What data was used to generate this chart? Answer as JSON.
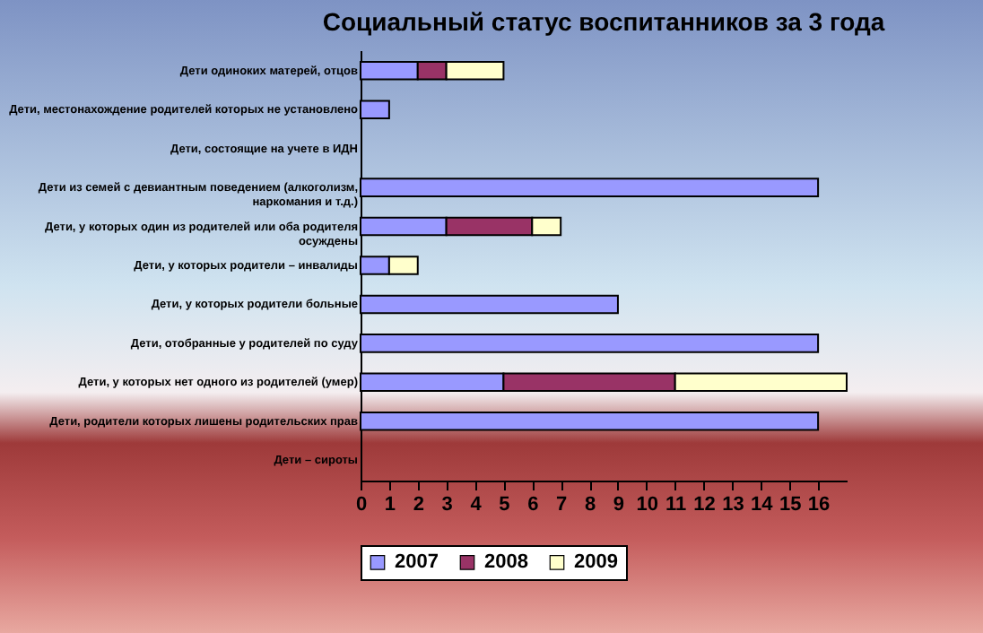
{
  "chart_data": {
    "type": "bar",
    "title": "Социальный статус воспитанников за 3 года",
    "orientation": "horizontal",
    "stacked": true,
    "categories": [
      "Дети одиноких матерей, отцов",
      "Дети, местонахождение родителей которых не установлено",
      "Дети, состоящие на учете в ИДН",
      "Дети из семей с девиантным поведением (алкоголизм, наркомания и т.д.)",
      "Дети, у которых один из родителей или оба родителя осуждены",
      "Дети, у которых родители – инвалиды",
      "Дети, у которых родители больные",
      "Дети, отобранные у родителей по суду",
      "Дети, у которых нет одного из родителей (умер)",
      "Дети, родители которых лишены родительских прав",
      "Дети – сироты"
    ],
    "series": [
      {
        "name": "2007",
        "color": "#9999ff",
        "values": [
          2,
          1,
          null,
          16,
          3,
          1,
          9,
          16,
          5,
          16,
          null
        ]
      },
      {
        "name": "2008",
        "color": "#993366",
        "values": [
          1,
          null,
          null,
          null,
          3,
          null,
          null,
          null,
          6,
          null,
          null
        ]
      },
      {
        "name": "2009",
        "color": "#ffffcc",
        "values": [
          2,
          null,
          null,
          null,
          1,
          1,
          null,
          null,
          6,
          null,
          null
        ]
      }
    ],
    "xlim": [
      0,
      17
    ],
    "xticks": [
      0,
      1,
      2,
      3,
      4,
      5,
      6,
      7,
      8,
      9,
      10,
      11,
      12,
      13,
      14,
      15,
      16
    ],
    "grid": false,
    "legend": "bottom"
  }
}
